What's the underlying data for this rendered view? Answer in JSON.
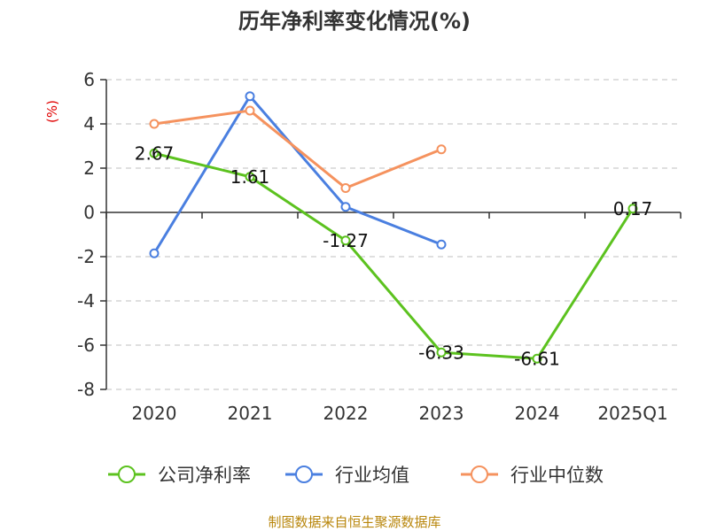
{
  "chart_data": {
    "type": "line",
    "title": "历年净利率变化情况(%)",
    "ylabel": "(%)",
    "xlabel": "",
    "categories": [
      "2020",
      "2021",
      "2022",
      "2023",
      "2024",
      "2025Q1"
    ],
    "ylim": [
      -8,
      6
    ],
    "yticks": [
      6,
      4,
      2,
      0,
      -2,
      -4,
      -6,
      -8
    ],
    "grid": true,
    "legend_position": "bottom",
    "series": [
      {
        "name": "公司净利率",
        "color": "#5cc21f",
        "values": [
          2.67,
          1.61,
          -1.27,
          -6.33,
          -6.61,
          0.17
        ],
        "labels": [
          "2.67",
          "1.61",
          "-1.27",
          "-6.33",
          "-6.61",
          "0.17"
        ]
      },
      {
        "name": "行业均值",
        "color": "#4a7fe0",
        "values": [
          -1.85,
          5.25,
          0.25,
          -1.45,
          null,
          null
        ]
      },
      {
        "name": "行业中位数",
        "color": "#f5925e",
        "values": [
          4.0,
          4.6,
          1.1,
          2.85,
          null,
          null
        ]
      }
    ]
  },
  "footer": {
    "source": "制图数据来自恒生聚源数据库"
  }
}
